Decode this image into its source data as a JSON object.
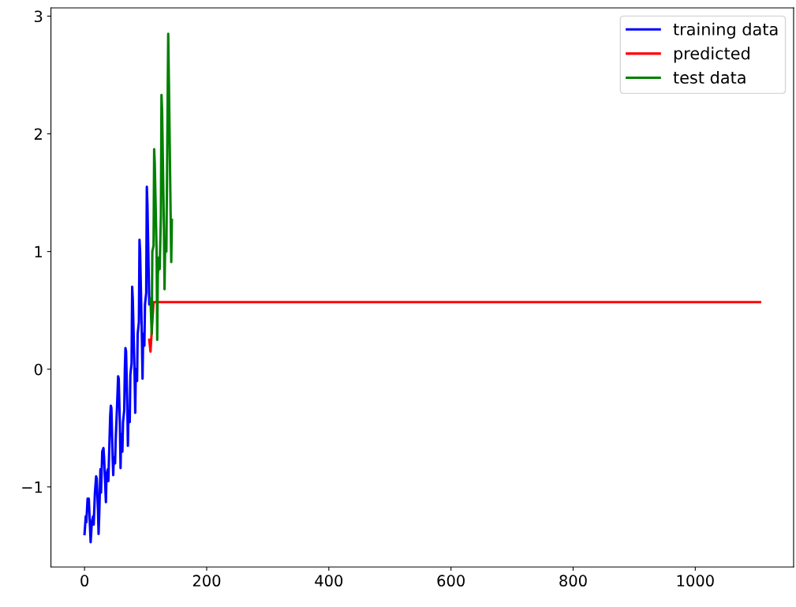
{
  "chart_data": {
    "type": "line",
    "xlim": [
      -55,
      1161
    ],
    "ylim": [
      -1.68,
      3.07
    ],
    "xticks": [
      0,
      200,
      400,
      600,
      800,
      1000
    ],
    "yticks": [
      {
        "value": -1,
        "label": "−1"
      },
      0,
      1,
      2,
      3
    ],
    "grid": false,
    "legend": "top right",
    "marker": "none",
    "line_style": "solid",
    "series": [
      {
        "name": "training data",
        "color": "#0000ff",
        "x": [
          0,
          2,
          3,
          5,
          7,
          10,
          12,
          14,
          15,
          17,
          19,
          20,
          22,
          23,
          24,
          26,
          27,
          29,
          31,
          32,
          34,
          35,
          36,
          38,
          39,
          42,
          43,
          44,
          46,
          47,
          48,
          50,
          51,
          53,
          55,
          56,
          58,
          59,
          60,
          62,
          63,
          65,
          66,
          67,
          68,
          70,
          71,
          72,
          74,
          75,
          77,
          78,
          79,
          82,
          83,
          84,
          86,
          87,
          89,
          90,
          91,
          94,
          95,
          96,
          98,
          99,
          101,
          102,
          103,
          106,
          108
        ],
        "values": [
          -1.4,
          -1.25,
          -1.3,
          -1.1,
          -1.1,
          -1.47,
          -1.3,
          -1.25,
          -1.32,
          -1.05,
          -0.91,
          -0.93,
          -1.2,
          -1.4,
          -1.25,
          -0.85,
          -1.05,
          -0.7,
          -0.67,
          -0.75,
          -1.0,
          -1.13,
          -0.9,
          -0.85,
          -0.95,
          -0.4,
          -0.31,
          -0.33,
          -0.75,
          -0.9,
          -0.75,
          -0.8,
          -0.6,
          -0.35,
          -0.06,
          -0.08,
          -0.5,
          -0.84,
          -0.55,
          -0.7,
          -0.45,
          -0.35,
          0.0,
          0.18,
          0.15,
          -0.3,
          -0.65,
          -0.35,
          -0.45,
          -0.05,
          0.05,
          0.7,
          0.6,
          -0.05,
          -0.37,
          0.0,
          -0.1,
          0.3,
          0.4,
          1.1,
          1.0,
          0.25,
          -0.08,
          0.3,
          0.2,
          0.55,
          0.65,
          1.55,
          1.4,
          0.55,
          0.6
        ]
      },
      {
        "name": "predicted",
        "color": "#ff0000",
        "x": [
          106,
          108,
          113,
          1106
        ],
        "values": [
          0.25,
          0.15,
          0.57,
          0.57
        ]
      },
      {
        "name": "test data",
        "color": "#008000",
        "x": [
          108,
          110,
          111,
          113,
          114,
          115,
          118,
          119,
          120,
          122,
          123,
          125,
          126,
          127,
          130,
          131,
          132,
          134,
          135,
          137,
          138,
          141,
          142,
          143
        ],
        "values": [
          0.6,
          0.3,
          1.0,
          1.05,
          1.87,
          1.75,
          1.0,
          0.25,
          0.8,
          0.95,
          0.85,
          1.3,
          2.33,
          2.2,
          1.2,
          0.68,
          1.05,
          1.0,
          1.6,
          2.85,
          2.5,
          1.3,
          0.91,
          1.27
        ]
      }
    ]
  }
}
